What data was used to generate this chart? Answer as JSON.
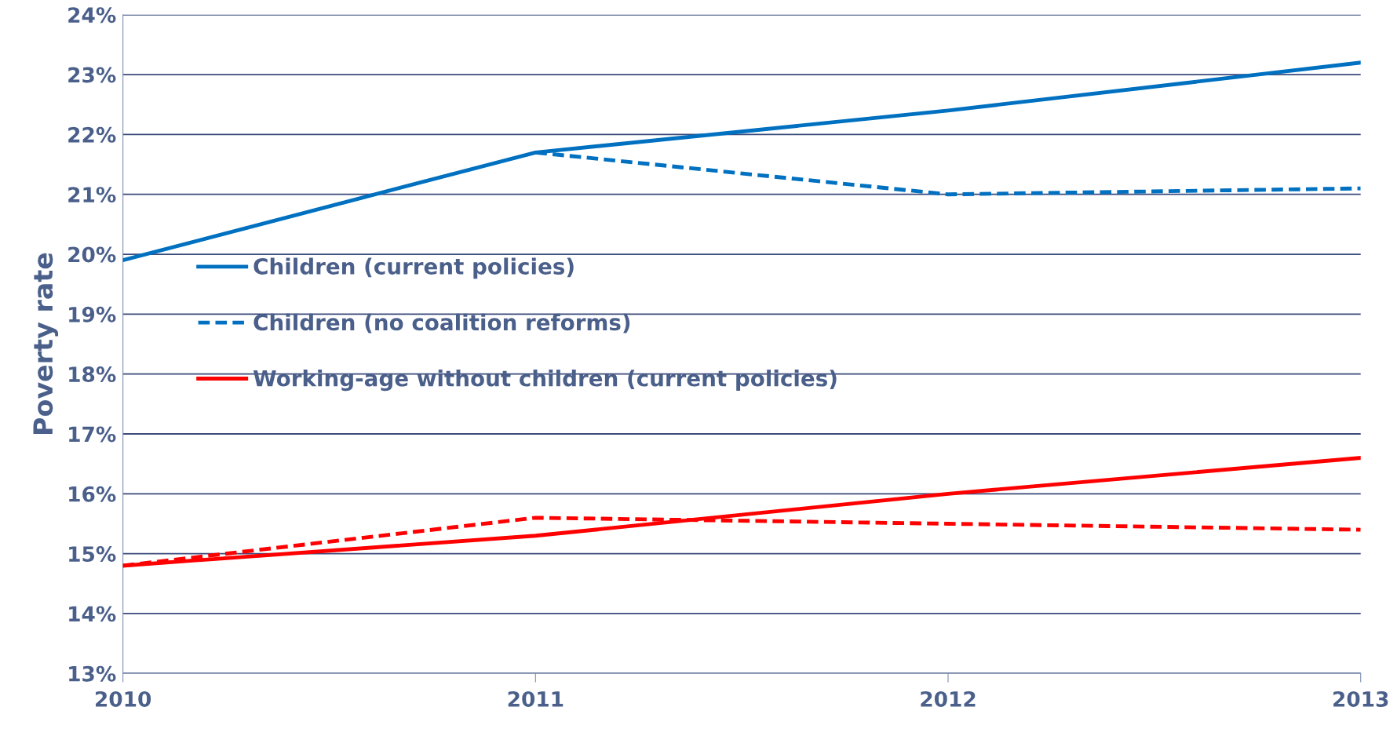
{
  "chart_data": {
    "type": "line",
    "ylabel": "Poverty rate",
    "x": [
      2010,
      2011,
      2012,
      2013
    ],
    "xlim": [
      2010,
      2013
    ],
    "xticks": [
      2010,
      2011,
      2012,
      2013
    ],
    "ylim": [
      13,
      24
    ],
    "yticks": [
      {
        "value": 13,
        "label": "13%"
      },
      {
        "value": 14,
        "label": "14%"
      },
      {
        "value": 15,
        "label": "15%"
      },
      {
        "value": 16,
        "label": "16%"
      },
      {
        "value": 17,
        "label": "17%"
      },
      {
        "value": 18,
        "label": "18%"
      },
      {
        "value": 19,
        "label": "19%"
      },
      {
        "value": 20,
        "label": "20%"
      },
      {
        "value": 21,
        "label": "21%"
      },
      {
        "value": 22,
        "label": "22%"
      },
      {
        "value": 23,
        "label": "23%"
      },
      {
        "value": 24,
        "label": "24%"
      }
    ],
    "grid": "y",
    "legend": "left",
    "marker": "none",
    "series": [
      {
        "name": "Children (current policies)",
        "color": "#0070c0",
        "line_style": "solid",
        "values": [
          19.9,
          21.7,
          22.4,
          23.2
        ]
      },
      {
        "name": "Children (no coalition reforms)",
        "color": "#0070c0",
        "line_style": "dashed",
        "values": [
          null,
          21.7,
          21.0,
          21.1
        ]
      },
      {
        "name": "Working-age without children (current policies)",
        "color": "#ff0000",
        "line_style": "solid",
        "values": [
          14.8,
          15.3,
          16.0,
          16.6
        ]
      },
      {
        "color": "#ff0000",
        "line_style": "dashed",
        "values": [
          14.8,
          15.6,
          15.5,
          15.4
        ]
      }
    ]
  }
}
